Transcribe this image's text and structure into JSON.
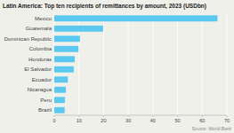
{
  "chart_data": {
    "type": "bar",
    "orientation": "horizontal",
    "title": "Latin America: Top ten recipients of remittances by amount, 2023 (USDbn)",
    "annotations": [
      "Source: World Bank"
    ],
    "categories": [
      "Mexico",
      "Guatemala",
      "Dominican Republic",
      "Colombia",
      "Honduras",
      "El Salvador",
      "Ecuador",
      "Nicaragua",
      "Peru",
      "Brazil"
    ],
    "values": [
      66.2,
      19.8,
      10.4,
      9.8,
      8.3,
      7.9,
      5.5,
      4.7,
      4.3,
      4.2
    ],
    "color": "#5bc8f0",
    "xlim": [
      0,
      70
    ],
    "xticks": [
      0,
      10,
      20,
      30,
      40,
      50,
      60,
      70
    ],
    "grid": true
  }
}
